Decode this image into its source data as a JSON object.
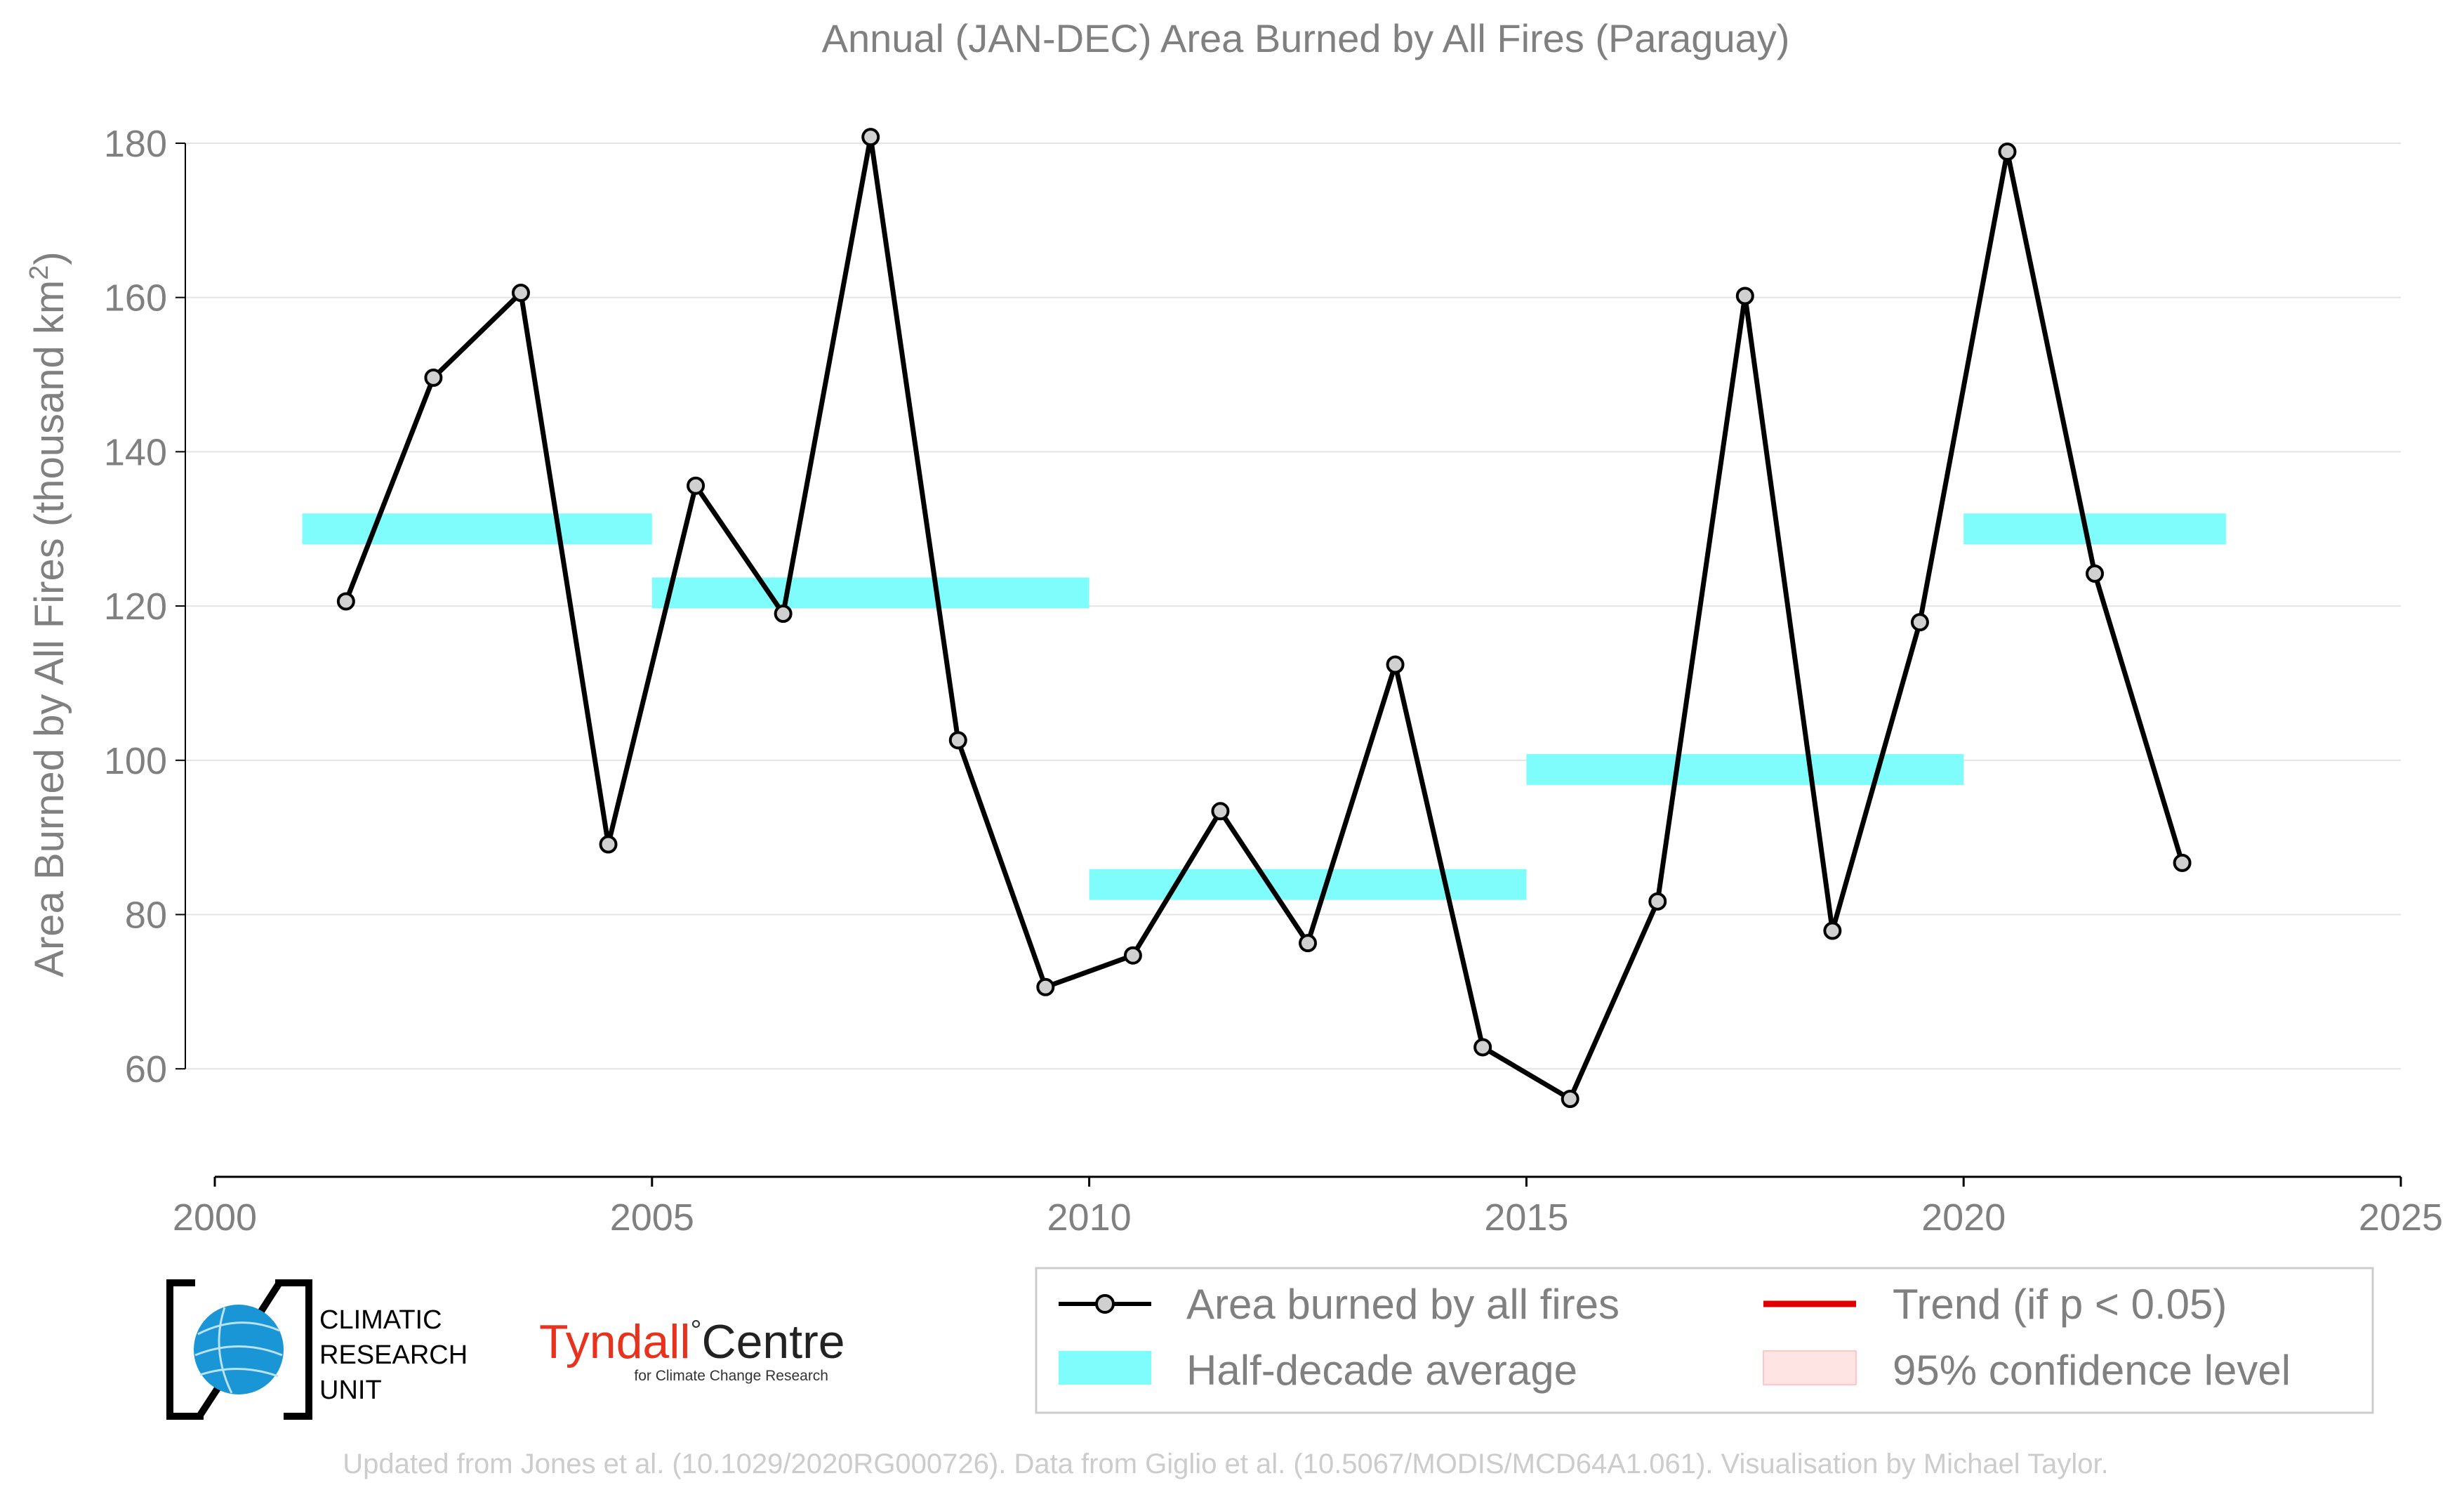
{
  "chart_data": {
    "type": "line",
    "title": "Annual (JAN-DEC) Area Burned by All Fires (Paraguay)",
    "xlabel": "",
    "ylabel_main": "Area Burned by All Fires (thousand km",
    "ylabel_sup": "2",
    "ylabel_end": ")",
    "xlim": [
      2000,
      2025
    ],
    "ylim": [
      46,
      184
    ],
    "xticks": [
      2000,
      2005,
      2010,
      2015,
      2020,
      2025
    ],
    "yticks": [
      60,
      80,
      100,
      120,
      140,
      160,
      180
    ],
    "grid": "horizontal",
    "series": [
      {
        "name": "Area burned by all fires",
        "color": "#000000",
        "marker_fill": "#d0d0d0",
        "x": [
          2001.5,
          2002.5,
          2003.5,
          2004.5,
          2005.5,
          2006.5,
          2007.5,
          2008.5,
          2009.5,
          2010.5,
          2011.5,
          2012.5,
          2013.5,
          2014.5,
          2015.5,
          2016.5,
          2017.5,
          2018.5,
          2019.5,
          2020.5,
          2021.5,
          2022.5
        ],
        "y": [
          120.6,
          149.6,
          160.6,
          89.1,
          135.6,
          119.0,
          180.8,
          102.6,
          70.6,
          74.7,
          93.4,
          76.3,
          112.4,
          62.8,
          56.1,
          81.7,
          160.2,
          77.9,
          117.9,
          178.9,
          124.2,
          86.7
        ]
      }
    ],
    "half_decade_averages": {
      "name": "Half-decade average",
      "color": "#7ffdfd",
      "segments": [
        {
          "x0": 2001,
          "x1": 2005,
          "y": 130.0
        },
        {
          "x0": 2005,
          "x1": 2010,
          "y": 121.7
        },
        {
          "x0": 2010,
          "x1": 2015,
          "y": 83.9
        },
        {
          "x0": 2015,
          "x1": 2020,
          "y": 98.8
        },
        {
          "x0": 2020,
          "x1": 2023,
          "y": 130.0
        }
      ]
    },
    "legend": {
      "placement": "bottom-right",
      "entries": [
        {
          "label": "Area burned by all fires",
          "kind": "line-marker",
          "color": "#000000"
        },
        {
          "label": "Trend (if p < 0.05)",
          "kind": "line",
          "color": "#e00000"
        },
        {
          "label": "Half-decade average",
          "kind": "patch",
          "color": "#7ffdfd"
        },
        {
          "label": "95% confidence level",
          "kind": "patch",
          "color": "#ffe4e4"
        }
      ]
    }
  },
  "logos": {
    "cru": {
      "line1": "CLIMATIC",
      "line2": "RESEARCH",
      "line3": "UNIT"
    },
    "tyndall": {
      "name_left": "Tyndall",
      "degree": "°",
      "name_right": "Centre",
      "subtitle": "for Climate Change Research",
      "red": "#e8321e"
    }
  },
  "footer": "Updated from Jones et al. (10.1029/2020RG000726). Data from Giglio et al. (10.5067/MODIS/MCD64A1.061). Visualisation by Michael Taylor."
}
